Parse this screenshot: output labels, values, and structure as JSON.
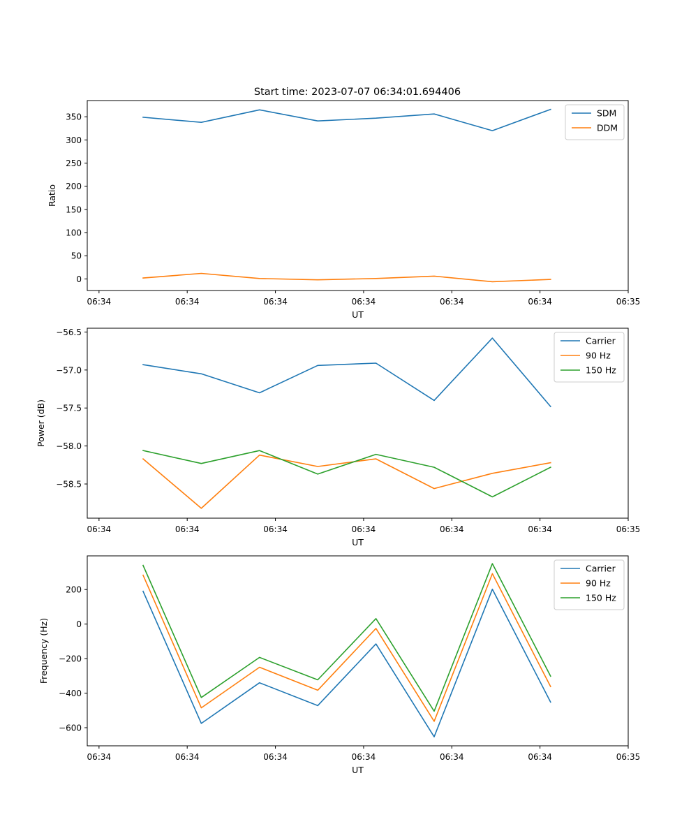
{
  "figure_title": "Start time: 2023-07-07 06:34:01.694406",
  "chart_data": [
    {
      "type": "line",
      "ylabel": "Ratio",
      "xlabel": "UT",
      "ylim": [
        -25,
        385
      ],
      "yticks": [
        0,
        50,
        100,
        150,
        200,
        250,
        300,
        350
      ],
      "ytick_labels": [
        "0",
        "50",
        "100",
        "150",
        "200",
        "250",
        "300",
        "350"
      ],
      "xlim": [
        -0.2,
        9.0
      ],
      "xticks": [
        0,
        1.5,
        3,
        4.5,
        6,
        7.5,
        9
      ],
      "xtick_labels": [
        "06:34",
        "06:34",
        "06:34",
        "06:34",
        "06:34",
        "06:34",
        "06:35"
      ],
      "x": [
        0.75,
        1.74,
        2.73,
        3.72,
        4.71,
        5.7,
        6.69,
        7.68
      ],
      "legend_position": "top-right",
      "series": [
        {
          "name": "SDM",
          "color": "#1f77b4",
          "values": [
            349,
            338,
            365,
            341,
            347,
            356,
            320,
            366
          ]
        },
        {
          "name": "DDM",
          "color": "#ff7f0e",
          "values": [
            2,
            12,
            1,
            -2,
            1,
            6,
            -6,
            -1
          ]
        }
      ]
    },
    {
      "type": "line",
      "ylabel": "Power (dB)",
      "xlabel": "UT",
      "ylim": [
        -58.95,
        -56.45
      ],
      "yticks": [
        -58.5,
        -58.0,
        -57.5,
        -57.0,
        -56.5
      ],
      "ytick_labels": [
        "−58.5",
        "−58.0",
        "−57.5",
        "−57.0",
        "−56.5"
      ],
      "xlim": [
        -0.2,
        9.0
      ],
      "xticks": [
        0,
        1.5,
        3,
        4.5,
        6,
        7.5,
        9
      ],
      "xtick_labels": [
        "06:34",
        "06:34",
        "06:34",
        "06:34",
        "06:34",
        "06:34",
        "06:35"
      ],
      "x": [
        0.75,
        1.74,
        2.73,
        3.72,
        4.71,
        5.7,
        6.69,
        7.68
      ],
      "legend_position": "top-right",
      "series": [
        {
          "name": "Carrier",
          "color": "#1f77b4",
          "values": [
            -56.93,
            -57.05,
            -57.3,
            -56.94,
            -56.91,
            -57.4,
            -56.58,
            -57.48
          ]
        },
        {
          "name": "90 Hz",
          "color": "#ff7f0e",
          "values": [
            -58.17,
            -58.82,
            -58.12,
            -58.27,
            -58.17,
            -58.56,
            -58.36,
            -58.22
          ]
        },
        {
          "name": "150 Hz",
          "color": "#2ca02c",
          "values": [
            -58.06,
            -58.23,
            -58.06,
            -58.37,
            -58.11,
            -58.28,
            -58.67,
            -58.28
          ]
        }
      ]
    },
    {
      "type": "line",
      "ylabel": "Frequency (Hz)",
      "xlabel": "UT",
      "ylim": [
        -705,
        395
      ],
      "yticks": [
        -600,
        -400,
        -200,
        0,
        200
      ],
      "ytick_labels": [
        "−600",
        "−400",
        "−200",
        "0",
        "200"
      ],
      "xlim": [
        -0.2,
        9.0
      ],
      "xticks": [
        0,
        1.5,
        3,
        4.5,
        6,
        7.5,
        9
      ],
      "xtick_labels": [
        "06:34",
        "06:34",
        "06:34",
        "06:34",
        "06:34",
        "06:34",
        "06:35"
      ],
      "x": [
        0.75,
        1.74,
        2.73,
        3.72,
        4.71,
        5.7,
        6.69,
        7.68
      ],
      "legend_position": "top-right",
      "series": [
        {
          "name": "Carrier",
          "color": "#1f77b4",
          "values": [
            190,
            -575,
            -340,
            -472,
            -115,
            -653,
            202,
            -452
          ]
        },
        {
          "name": "90 Hz",
          "color": "#ff7f0e",
          "values": [
            283,
            -485,
            -250,
            -383,
            -25,
            -563,
            292,
            -362
          ]
        },
        {
          "name": "150 Hz",
          "color": "#2ca02c",
          "values": [
            340,
            -425,
            -193,
            -323,
            32,
            -505,
            350,
            -302
          ]
        }
      ]
    }
  ]
}
